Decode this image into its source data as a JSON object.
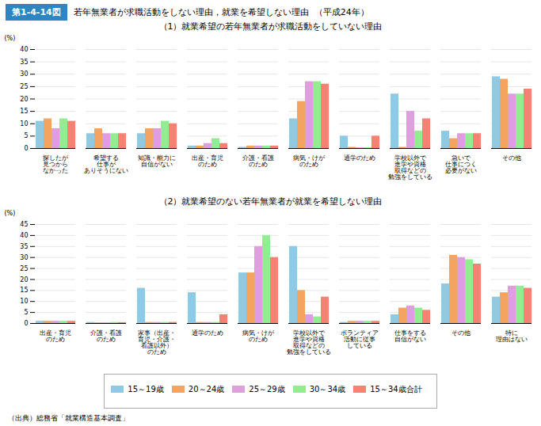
{
  "chart_data": [
    {
      "type": "bar",
      "title": "（1）就業希望の若年無業者が求職活動をしていない理由",
      "annotations": [
        "第1-4-14図",
        "若年無業者が求職活動をしない理由，就業を希望しない理由  （平成24年）"
      ],
      "ylabel": "(%)",
      "categories": [
        "探したが\n見つから\nなかった",
        "希望する\n仕事が\nありそうにない",
        "知識・能力に\n自信がない",
        "出産・育児\nのため",
        "介護・看護\nのため",
        "病気・けが\nのため",
        "通学のため",
        "学校以外で\n進学や資格\n取得などの\n勉強をしている",
        "急いで\n仕事につく\n必要がない",
        "その他"
      ],
      "series": [
        {
          "name": "15～19歳",
          "color": "#8ECAE6",
          "values": [
            11,
            6,
            6,
            1,
            0.5,
            12,
            5,
            22,
            7,
            29
          ]
        },
        {
          "name": "20～24歳",
          "color": "#F4A460",
          "values": [
            12,
            8,
            8,
            1,
            1,
            19,
            0.5,
            0.5,
            4,
            28
          ]
        },
        {
          "name": "25～29歳",
          "color": "#DDA0DD",
          "values": [
            8,
            6,
            8,
            2,
            1,
            27,
            0.3,
            15,
            6,
            22
          ]
        },
        {
          "name": "30～34歳",
          "color": "#90EE90",
          "values": [
            12,
            6,
            11,
            4,
            1,
            27,
            0.3,
            7,
            6,
            22
          ]
        },
        {
          "name": "15～34歳合計",
          "color": "#FA8072",
          "values": [
            11,
            6,
            10,
            2,
            1,
            26,
            5,
            12,
            6,
            24
          ]
        }
      ],
      "ylim": [
        0,
        40
      ],
      "yticks": [
        0,
        5,
        10,
        15,
        20,
        25,
        30,
        35,
        40
      ],
      "grid": true
    },
    {
      "type": "bar",
      "title": "（2）就業希望のない若年無業者が就業を希望しない理由",
      "annotations": [
        "（出典）総務省「就業構造基本調査」"
      ],
      "ylabel": "(%)",
      "categories": [
        "出産・育児\nのため",
        "介護・看護\nのため",
        "家事（出産・\n育児・介護・\n看護以外）\nのため",
        "通学のため",
        "病気・けが\nのため",
        "学校以外で\n進学や資格\n取得などの\n勉強をしている",
        "ボランティア\n活動に従事\nしている",
        "仕事をする\n自信がない",
        "その他",
        "特に\n理由はない"
      ],
      "series": [
        {
          "name": "15～19歳",
          "color": "#8ECAE6",
          "values": [
            1,
            0.5,
            16,
            14,
            23,
            35,
            0.5,
            4,
            18,
            12
          ]
        },
        {
          "name": "20～24歳",
          "color": "#F4A460",
          "values": [
            1,
            0.3,
            0.5,
            0.5,
            23,
            15,
            1,
            7,
            31,
            14
          ]
        },
        {
          "name": "25～29歳",
          "color": "#DDA0DD",
          "values": [
            1,
            0.3,
            0.5,
            0.5,
            35,
            4,
            1,
            8,
            30,
            17
          ]
        },
        {
          "name": "30～34歳",
          "color": "#90EE90",
          "values": [
            1,
            0.5,
            0.5,
            0.5,
            40,
            3,
            1,
            7,
            29,
            17
          ]
        },
        {
          "name": "15～34歳合計",
          "color": "#FA8072",
          "values": [
            1,
            0.4,
            0.5,
            4,
            30,
            12,
            1,
            6,
            27,
            16
          ]
        }
      ],
      "ylim": [
        0,
        45
      ],
      "yticks": [
        0,
        5,
        10,
        15,
        20,
        25,
        30,
        35,
        40,
        45
      ],
      "grid": true,
      "legend": "bottom"
    }
  ]
}
